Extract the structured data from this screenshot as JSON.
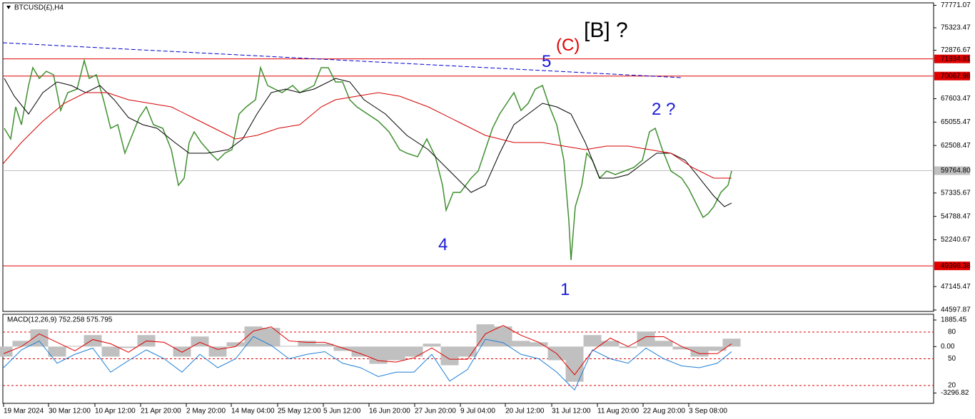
{
  "chart_data": [
    {
      "type": "line",
      "title": "BTCUSD(£),H4",
      "ylim": [
        44442,
        78039
      ],
      "yticks": [
        77771.07,
        75323.47,
        72876.67,
        67603.47,
        65055.47,
        62508.47,
        57335.67,
        54788.47,
        52240.67,
        47145.47,
        44597.87
      ],
      "xlim": [
        4,
        1308
      ],
      "xticks": [
        {
          "value": 5,
          "label": "19 Mar 2024"
        },
        {
          "value": 68,
          "label": "30 Mar 12:00"
        },
        {
          "value": 133,
          "label": "10 Apr 12:00"
        },
        {
          "value": 197,
          "label": "21 Apr 20:00"
        },
        {
          "value": 261,
          "label": "2 May 20:00"
        },
        {
          "value": 324,
          "label": "14 May 04:00"
        },
        {
          "value": 389,
          "label": "25 May 12:00"
        },
        {
          "value": 453,
          "label": "5 Jun 12:00"
        },
        {
          "value": 517,
          "label": "16 Jun 20:00"
        },
        {
          "value": 581,
          "label": "27 Jun 20:00"
        },
        {
          "value": 645,
          "label": "9 Jul 04:00"
        },
        {
          "value": 708,
          "label": "20 Jul 12:00"
        },
        {
          "value": 773,
          "label": "31 Jul 12:00"
        },
        {
          "value": 837,
          "label": "11 Aug 20:00"
        },
        {
          "value": 901,
          "label": "22 Aug 20:00"
        },
        {
          "value": 965,
          "label": "3 Sep 08:00"
        }
      ],
      "series": [
        {
          "color": "#3f8f2f",
          "x": [
            6,
            15,
            22,
            30,
            40,
            46,
            55,
            65,
            75,
            85,
            95,
            108,
            118,
            125,
            135,
            145,
            155,
            165,
            175,
            185,
            195,
            205,
            215,
            228,
            240,
            250,
            258,
            265,
            272,
            282,
            295,
            305,
            315,
            325,
            335,
            345,
            358,
            365,
            375,
            385,
            395,
            410,
            420,
            430,
            440,
            450,
            460,
            470,
            480,
            490,
            500,
            515,
            530,
            545,
            560,
            570,
            585,
            598,
            610,
            620,
            625,
            635,
            645,
            660,
            670,
            680,
            690,
            700,
            710,
            720,
            730,
            740,
            750,
            760,
            770,
            780,
            790,
            797,
            800,
            806,
            815,
            822,
            830,
            840,
            850,
            862,
            875,
            888,
            900,
            910,
            918,
            928,
            940,
            955,
            965,
            975,
            985,
            992,
            1000,
            1010,
            1020,
            1025
          ],
          "values": [
            64383,
            63220,
            66711,
            64771,
            69039,
            70979,
            69815,
            70591,
            70203,
            66323,
            68263,
            68651,
            71755,
            69815,
            70203,
            67487,
            64383,
            64771,
            61668,
            63608,
            65547,
            66711,
            64771,
            64383,
            62056,
            58176,
            58952,
            62832,
            63996,
            62832,
            61668,
            60892,
            61668,
            62056,
            65935,
            66711,
            67487,
            70979,
            69039,
            68651,
            68263,
            69039,
            68263,
            68651,
            69039,
            70979,
            70979,
            69427,
            69427,
            67487,
            66711,
            65935,
            65159,
            63996,
            62056,
            61668,
            61280,
            63220,
            61280,
            58176,
            55461,
            57400,
            57400,
            58952,
            59728,
            62056,
            64383,
            65935,
            67099,
            68263,
            66323,
            67099,
            68651,
            69039,
            66711,
            64771,
            60892,
            54297,
            50029,
            55849,
            58176,
            61668,
            60892,
            58952,
            59728,
            59340,
            59728,
            60116,
            60892,
            63996,
            64383,
            62056,
            59728,
            58952,
            57788,
            56237,
            54685,
            55073,
            55849,
            57400,
            58176,
            59728
          ]
        },
        {
          "color": "#000000",
          "x": [
            6,
            20,
            40,
            60,
            80,
            100,
            120,
            140,
            160,
            180,
            200,
            220,
            245,
            265,
            290,
            320,
            340,
            360,
            380,
            400,
            420,
            440,
            470,
            490,
            510,
            540,
            570,
            600,
            630,
            660,
            680,
            700,
            720,
            740,
            760,
            780,
            800,
            820,
            840,
            860,
            880,
            900,
            920,
            940,
            960,
            980,
            1000,
            1015,
            1025
          ],
          "values": [
            69815,
            67875,
            65935,
            68263,
            69427,
            69039,
            68263,
            69039,
            67487,
            65547,
            64771,
            64383,
            62832,
            61668,
            61668,
            62056,
            63220,
            65935,
            68263,
            68651,
            68263,
            68651,
            69815,
            69427,
            67487,
            65935,
            63608,
            62056,
            59728,
            57400,
            58176,
            61668,
            64771,
            65935,
            67099,
            66711,
            65935,
            62832,
            58952,
            58952,
            59340,
            60504,
            61668,
            61668,
            60892,
            58952,
            57012,
            55849,
            56237
          ]
        },
        {
          "color": "#d40000",
          "x": [
            4,
            30,
            60,
            90,
            120,
            150,
            180,
            210,
            240,
            270,
            300,
            330,
            360,
            390,
            420,
            450,
            470,
            500,
            530,
            560,
            600,
            640,
            680,
            720,
            760,
            790,
            820,
            850,
            880,
            910,
            940,
            970,
            1000,
            1025
          ],
          "values": [
            60504,
            62832,
            65159,
            67099,
            68263,
            68263,
            67487,
            67099,
            66711,
            65547,
            64383,
            63220,
            63608,
            64383,
            64771,
            66711,
            67487,
            67875,
            68263,
            67875,
            66711,
            65159,
            63608,
            62832,
            62832,
            62444,
            62056,
            62444,
            62444,
            62056,
            61668,
            60116,
            58952,
            58952
          ]
        }
      ],
      "trendline": {
        "x": [
          4,
          955
        ],
        "values": [
          73694,
          69892
        ],
        "color": "#0000cc"
      },
      "hlines": [
        {
          "value": 71934.81,
          "label": "71934.81",
          "color": "#e00000"
        },
        {
          "value": 70067.98,
          "label": "70067.98",
          "color": "#e00000"
        },
        {
          "value": 59764.8,
          "label": "59764.80",
          "color": "#c0c0c0"
        },
        {
          "value": 49398.38,
          "label": "49398.38",
          "color": "#e00000"
        }
      ],
      "annotations": [
        "[B] ?",
        "(C)",
        "5",
        "2 ?",
        "4",
        "1"
      ]
    },
    {
      "type": "macd",
      "title": "MACD(12,26,9) 752.258 575.795",
      "ylim": [
        -4026,
        2293
      ],
      "yticks": [
        1885.45,
        {
          "value": 0,
          "label": "0.00"
        },
        -3296.82
      ],
      "y2lim": [
        0,
        100
      ],
      "y2ticks": [
        80,
        50,
        20
      ],
      "x": [
        5,
        30,
        55,
        80,
        105,
        130,
        155,
        180,
        205,
        230,
        255,
        280,
        305,
        330,
        355,
        380,
        405,
        430,
        455,
        480,
        505,
        530,
        555,
        580,
        605,
        630,
        655,
        680,
        705,
        730,
        755,
        780,
        805,
        830,
        855,
        880,
        905,
        930,
        955,
        980,
        1005,
        1025
      ],
      "series": [
        {
          "color": "#c0c0c0",
          "values": [
            -713,
            408,
            1223,
            -713,
            51,
            815,
            -713,
            -102,
            815,
            0,
            -713,
            713,
            -713,
            306,
            1427,
            1325,
            51,
            408,
            204,
            -306,
            -713,
            -1223,
            -968,
            -713,
            204,
            -1325,
            -713,
            1580,
            1427,
            408,
            306,
            -968,
            -2497,
            815,
            408,
            -102,
            1070,
            408,
            -204,
            -713,
            -306,
            561
          ]
        },
        {
          "color": "#e00000",
          "values": [
            -500,
            0,
            900,
            300,
            -300,
            500,
            200,
            -400,
            400,
            300,
            -400,
            300,
            -200,
            0,
            1100,
            1400,
            400,
            300,
            300,
            -100,
            -500,
            -1000,
            -1100,
            -800,
            -100,
            -900,
            -900,
            900,
            1500,
            800,
            300,
            -500,
            -2000,
            -300,
            600,
            0,
            700,
            700,
            0,
            -500,
            -500,
            200
          ]
        },
        {
          "color": "#1e7fd6",
          "axis": "y2",
          "values": [
            40,
            60,
            70,
            45,
            55,
            62,
            35,
            48,
            60,
            50,
            35,
            55,
            40,
            50,
            75,
            65,
            50,
            55,
            58,
            45,
            40,
            30,
            35,
            35,
            55,
            25,
            38,
            72,
            68,
            55,
            50,
            35,
            15,
            60,
            50,
            45,
            62,
            50,
            42,
            40,
            45,
            58
          ]
        }
      ]
    }
  ]
}
